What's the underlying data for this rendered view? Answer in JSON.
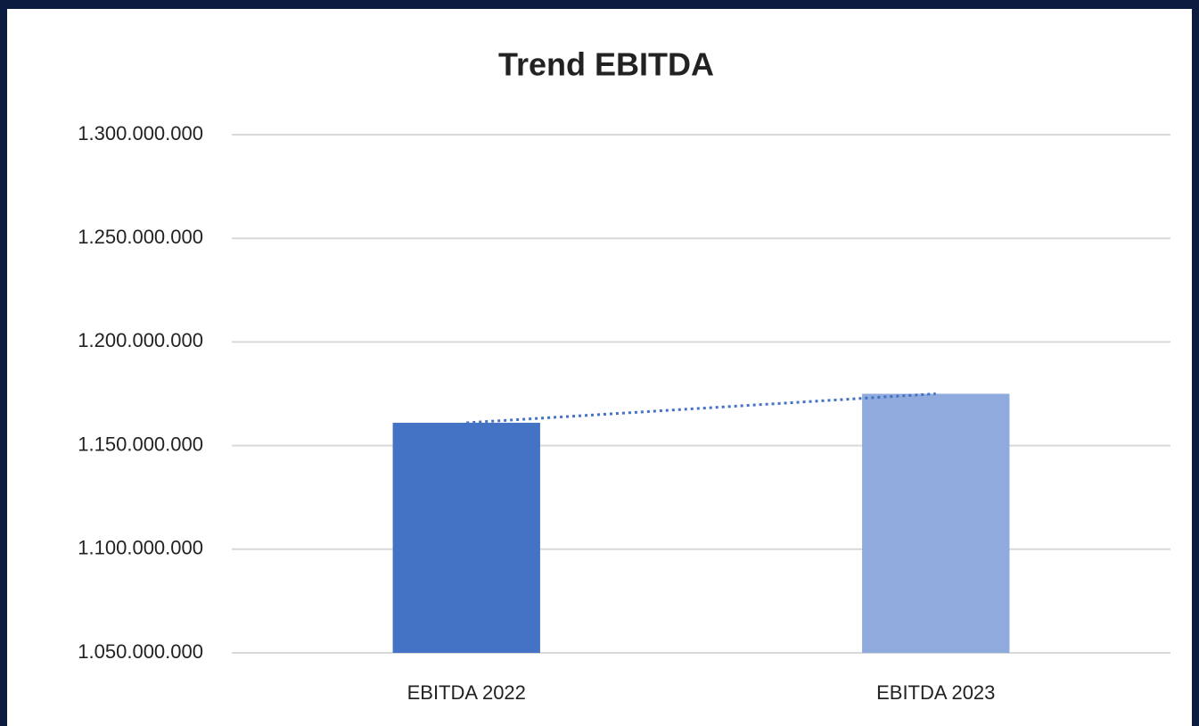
{
  "chart_data": {
    "type": "bar",
    "title": "Trend EBITDA",
    "categories": [
      "EBITDA 2022",
      "EBITDA 2023"
    ],
    "values": [
      1161000000,
      1175000000
    ],
    "colors": [
      "#4472c4",
      "#8faadc"
    ],
    "ylim": [
      1050000000,
      1300000000
    ],
    "yticks": [
      {
        "value": 1050000000,
        "label": "1.050.000.000"
      },
      {
        "value": 1100000000,
        "label": "1.100.000.000"
      },
      {
        "value": 1150000000,
        "label": "1.150.000.000"
      },
      {
        "value": 1200000000,
        "label": "1.200.000.000"
      },
      {
        "value": 1250000000,
        "label": "1.250.000.000"
      },
      {
        "value": 1300000000,
        "label": "1.300.000.000"
      }
    ],
    "grid": true,
    "trendline": true,
    "trendline_color": "#4472c4"
  }
}
